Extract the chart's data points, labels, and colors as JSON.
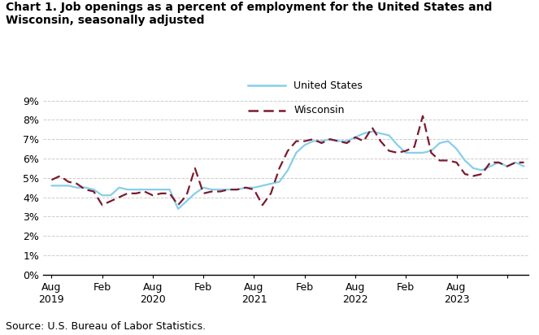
{
  "title": "Chart 1. Job openings as a percent of employment for the United States and\nWisconsin, seasonally adjusted",
  "source": "Source: U.S. Bureau of Labor Statistics.",
  "us_color": "#87CEEB",
  "wi_color": "#7B1A2E",
  "us_label": "United States",
  "wi_label": "Wisconsin",
  "ylim": [
    0,
    0.09
  ],
  "yticks": [
    0.0,
    0.01,
    0.02,
    0.03,
    0.04,
    0.05,
    0.06,
    0.07,
    0.08,
    0.09
  ],
  "ytick_labels": [
    "0%",
    "1%",
    "2%",
    "3%",
    "4%",
    "5%",
    "6%",
    "7%",
    "8%",
    "9%"
  ],
  "us_data": [
    0.046,
    0.046,
    0.046,
    0.045,
    0.045,
    0.044,
    0.041,
    0.041,
    0.045,
    0.044,
    0.044,
    0.044,
    0.044,
    0.044,
    0.044,
    0.034,
    0.038,
    0.042,
    0.045,
    0.044,
    0.044,
    0.044,
    0.044,
    0.045,
    0.045,
    0.046,
    0.047,
    0.048,
    0.054,
    0.063,
    0.067,
    0.069,
    0.069,
    0.07,
    0.069,
    0.069,
    0.071,
    0.073,
    0.074,
    0.073,
    0.072,
    0.067,
    0.063,
    0.063,
    0.063,
    0.064,
    0.068,
    0.069,
    0.065,
    0.059,
    0.055,
    0.054,
    0.056,
    0.058,
    0.056,
    0.058,
    0.056
  ],
  "wi_data": [
    0.049,
    0.051,
    0.048,
    0.047,
    0.044,
    0.043,
    0.036,
    0.038,
    0.04,
    0.042,
    0.042,
    0.043,
    0.041,
    0.042,
    0.042,
    0.036,
    0.041,
    0.055,
    0.042,
    0.043,
    0.043,
    0.044,
    0.044,
    0.045,
    0.044,
    0.036,
    0.042,
    0.055,
    0.064,
    0.069,
    0.069,
    0.07,
    0.068,
    0.07,
    0.069,
    0.068,
    0.071,
    0.069,
    0.076,
    0.069,
    0.064,
    0.063,
    0.064,
    0.066,
    0.082,
    0.063,
    0.059,
    0.059,
    0.058,
    0.052,
    0.051,
    0.052,
    0.058,
    0.058,
    0.056,
    0.058,
    0.058
  ],
  "x_tick_positions": [
    0,
    6,
    12,
    18,
    24,
    30,
    36,
    42,
    48,
    54
  ],
  "x_tick_labels": [
    "Aug\n2019",
    "Feb",
    "Aug\n2020",
    "Feb",
    "Aug\n2021",
    "Feb",
    "Aug\n2022",
    "Feb",
    "Aug\n2023",
    ""
  ],
  "background_color": "#ffffff",
  "grid_color": "#cccccc",
  "title_fontsize": 10,
  "tick_fontsize": 9,
  "source_fontsize": 9
}
